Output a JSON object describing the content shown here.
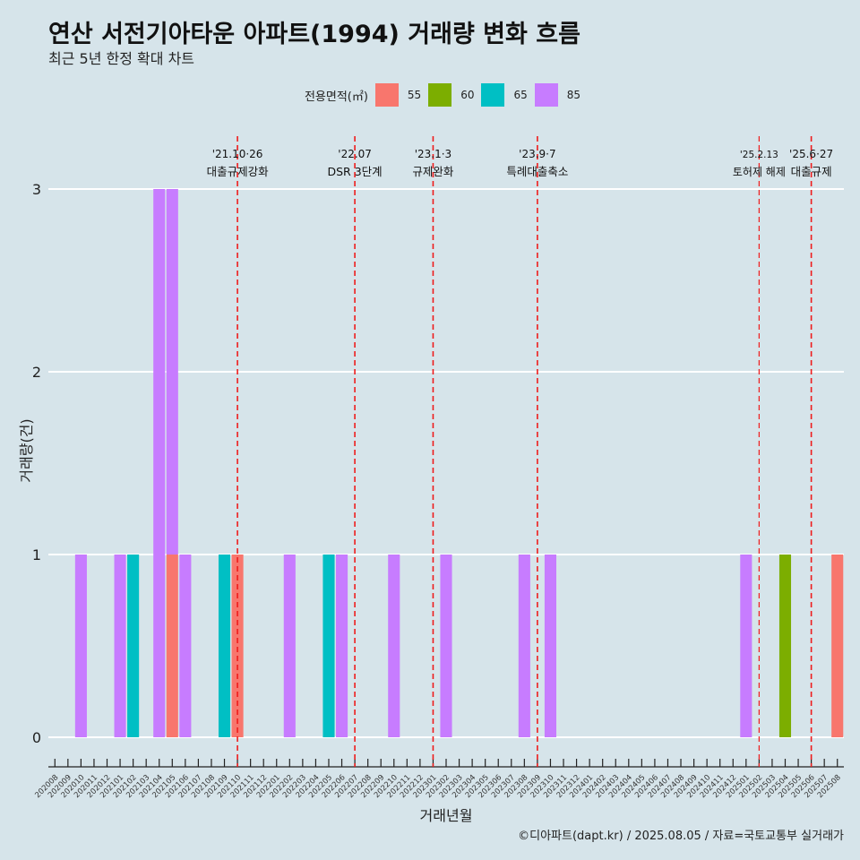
{
  "title": "연산 서전기아타운 아파트(1994) 거래량 변화 흐름",
  "subtitle": "최근 5년 한정 확대 차트",
  "caption": "©디아파트(dapt.kr) / 2025.08.05 / 자료=국토교통부 실거래가",
  "legend": {
    "title": "전용면적(㎡)",
    "items": [
      {
        "label": "55",
        "color": "#f8766d"
      },
      {
        "label": "60",
        "color": "#7cae00"
      },
      {
        "label": "65",
        "color": "#00bfc4"
      },
      {
        "label": "85",
        "color": "#c77cff"
      }
    ]
  },
  "chart_data": {
    "type": "bar",
    "xlabel": "거래년월",
    "ylabel": "거래량(건)",
    "ylim": [
      0,
      3
    ],
    "yticks": [
      0,
      1,
      2,
      3
    ],
    "grid": true,
    "legend_position": "top",
    "categories": [
      "202008",
      "202009",
      "202010",
      "202011",
      "202012",
      "202101",
      "202102",
      "202103",
      "202104",
      "202105",
      "202106",
      "202107",
      "202108",
      "202109",
      "202110",
      "202111",
      "202112",
      "202201",
      "202202",
      "202203",
      "202204",
      "202205",
      "202206",
      "202207",
      "202208",
      "202209",
      "202210",
      "202211",
      "202212",
      "202301",
      "202302",
      "202303",
      "202304",
      "202305",
      "202306",
      "202307",
      "202308",
      "202309",
      "202310",
      "202311",
      "202312",
      "202401",
      "202402",
      "202403",
      "202404",
      "202405",
      "202406",
      "202407",
      "202408",
      "202409",
      "202410",
      "202411",
      "202412",
      "202501",
      "202502",
      "202503",
      "202504",
      "202505",
      "202506",
      "202507",
      "202508"
    ],
    "series": [
      {
        "name": "55",
        "color": "#f8766d",
        "values": [
          0,
          0,
          0,
          0,
          0,
          0,
          0,
          0,
          0,
          1,
          0,
          0,
          0,
          0,
          1,
          0,
          0,
          0,
          0,
          0,
          0,
          0,
          0,
          0,
          0,
          0,
          0,
          0,
          0,
          0,
          0,
          0,
          0,
          0,
          0,
          0,
          0,
          0,
          0,
          0,
          0,
          0,
          0,
          0,
          0,
          0,
          0,
          0,
          0,
          0,
          0,
          0,
          0,
          0,
          0,
          0,
          0,
          0,
          0,
          0,
          1
        ]
      },
      {
        "name": "60",
        "color": "#7cae00",
        "values": [
          0,
          0,
          0,
          0,
          0,
          0,
          0,
          0,
          0,
          0,
          0,
          0,
          0,
          0,
          0,
          0,
          0,
          0,
          0,
          0,
          0,
          0,
          0,
          0,
          0,
          0,
          0,
          0,
          0,
          0,
          0,
          0,
          0,
          0,
          0,
          0,
          0,
          0,
          0,
          0,
          0,
          0,
          0,
          0,
          0,
          0,
          0,
          0,
          0,
          0,
          0,
          0,
          0,
          0,
          0,
          0,
          1,
          0,
          0,
          0,
          0
        ]
      },
      {
        "name": "65",
        "color": "#00bfc4",
        "values": [
          0,
          0,
          0,
          0,
          0,
          0,
          1,
          0,
          0,
          0,
          0,
          0,
          0,
          1,
          0,
          0,
          0,
          0,
          0,
          0,
          0,
          1,
          0,
          0,
          0,
          0,
          0,
          0,
          0,
          0,
          0,
          0,
          0,
          0,
          0,
          0,
          0,
          0,
          0,
          0,
          0,
          0,
          0,
          0,
          0,
          0,
          0,
          0,
          0,
          0,
          0,
          0,
          0,
          0,
          0,
          0,
          0,
          0,
          0,
          0,
          0
        ]
      },
      {
        "name": "85",
        "color": "#c77cff",
        "values": [
          0,
          0,
          1,
          0,
          0,
          1,
          0,
          0,
          3,
          2,
          1,
          0,
          0,
          0,
          0,
          0,
          0,
          0,
          1,
          0,
          0,
          0,
          1,
          0,
          0,
          0,
          1,
          0,
          0,
          0,
          1,
          0,
          0,
          0,
          0,
          0,
          1,
          0,
          1,
          0,
          0,
          0,
          0,
          0,
          0,
          0,
          0,
          0,
          0,
          0,
          0,
          0,
          0,
          1,
          0,
          0,
          0,
          0,
          0,
          0,
          0
        ]
      }
    ],
    "annotations": [
      {
        "date": "'21.10·26",
        "label": "대출규제강화",
        "at": "202110"
      },
      {
        "date": "'22.07",
        "label": "DSR 3단계",
        "at": "202207"
      },
      {
        "date": "'23.1·3",
        "label": "규제완화",
        "at": "202301"
      },
      {
        "date": "'23.9·7",
        "label": "특례대출축소",
        "at": "202309"
      },
      {
        "date": "'25.2.13",
        "label": "토허제 해제",
        "at": "202502"
      },
      {
        "date": "'25.6·27",
        "label": "대출규제",
        "at": "202506"
      }
    ]
  }
}
